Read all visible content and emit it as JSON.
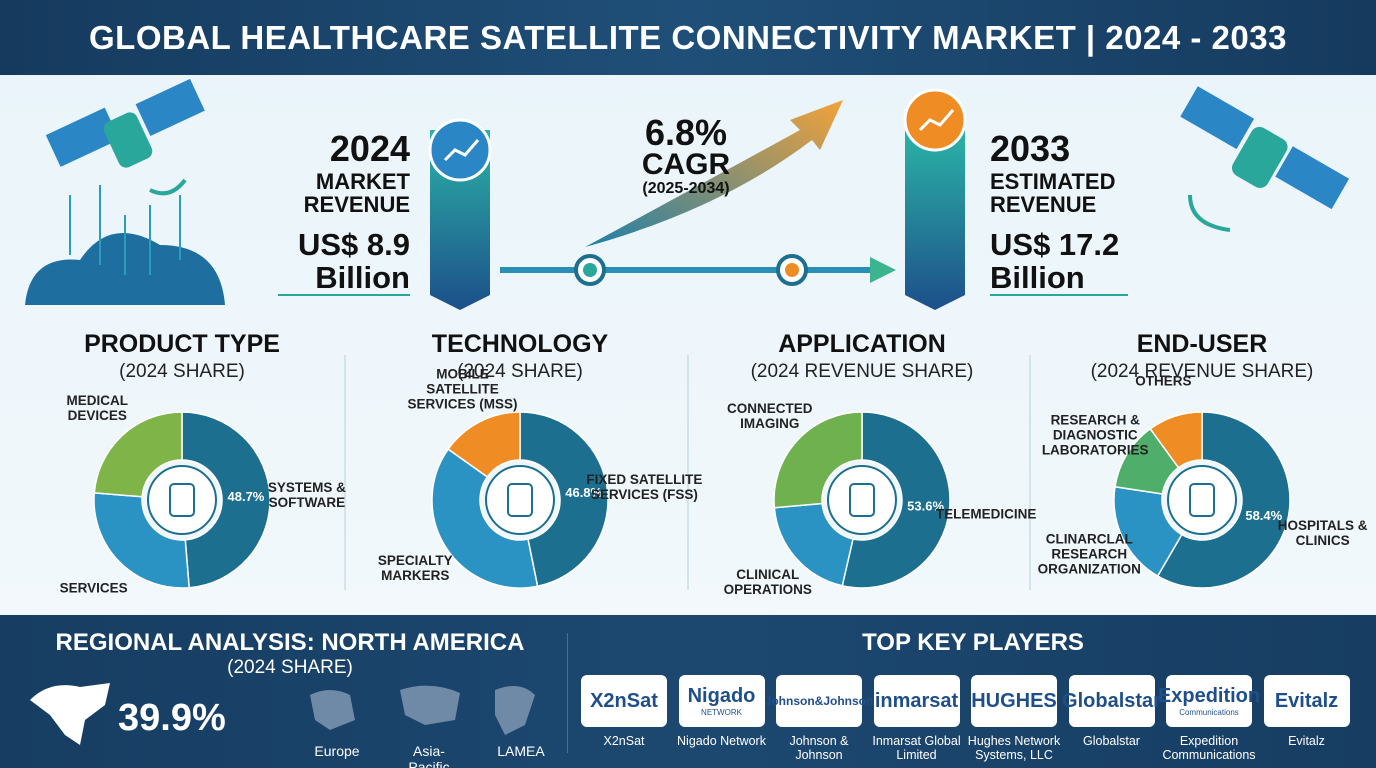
{
  "header": {
    "title": "GLOBAL HEALTHCARE SATELLITE CONNECTIVITY MARKET | 2024 - 2033"
  },
  "summary": {
    "start": {
      "year": "2024",
      "label": "MARKET REVENUE",
      "amount": "US$ 8.9",
      "unit": "Billion"
    },
    "growth": {
      "rate": "6.8%",
      "label": "CAGR",
      "period": "(2025-2034)"
    },
    "end": {
      "year": "2033",
      "label": "ESTIMATED REVENUE",
      "amount": "US$ 17.2",
      "unit": "Billion"
    }
  },
  "segments": [
    {
      "title": "PRODUCT TYPE",
      "subtitle": "(2024 SHARE)",
      "slices": [
        {
          "name": "SYSTEMS & SOFTWARE",
          "value": 48.7,
          "value_label": "48.7%",
          "color": "#1d6f8f"
        },
        {
          "name": "SERVICES",
          "value": 27.6,
          "color": "#2a93c4"
        },
        {
          "name": "MEDICAL DEVICES",
          "value": 23.7,
          "color": "#7fb548"
        }
      ]
    },
    {
      "title": "TECHNOLOGY",
      "subtitle": "(2024 SHARE)",
      "slices": [
        {
          "name": "FIXED SATELLITE SERVICES (FSS)",
          "value": 46.8,
          "value_label": "46.8%",
          "color": "#1d6f8f"
        },
        {
          "name": "SPECIALTY MARKERS",
          "value": 38.0,
          "color": "#2a93c4"
        },
        {
          "name": "MOBILE SATELLITE SERVICES (MSS)",
          "value": 15.2,
          "color": "#f08c24"
        }
      ]
    },
    {
      "title": "APPLICATION",
      "subtitle": "(2024 REVENUE SHARE)",
      "slices": [
        {
          "name": "TELEMEDICINE",
          "value": 53.6,
          "value_label": "53.6%",
          "color": "#1d6f8f"
        },
        {
          "name": "CLINICAL OPERATIONS",
          "value": 20.0,
          "color": "#2a93c4"
        },
        {
          "name": "CONNECTED IMAGING",
          "value": 26.4,
          "color": "#6fb04f"
        }
      ]
    },
    {
      "title": "END-USER",
      "subtitle": "(2024 REVENUE SHARE)",
      "slices": [
        {
          "name": "HOSPITALS & CLINICS",
          "value": 58.4,
          "value_label": "58.4%",
          "color": "#1d6f8f"
        },
        {
          "name": "CLINARCLAL RESEARCH ORGANIZATION",
          "value": 19.0,
          "color": "#2a93c4"
        },
        {
          "name": "RESEARCH & DIAGNOSTIC LABORATORIES",
          "value": 12.6,
          "color": "#4fae6a"
        },
        {
          "name": "OTHERS",
          "value": 10.0,
          "color": "#f08c24"
        }
      ]
    }
  ],
  "region": {
    "title": "REGIONAL ANALYSIS: NORTH AMERICA",
    "subtitle": "(2024 SHARE)",
    "share": "39.9%",
    "others": [
      "Europe",
      "Asia-Pacific",
      "LAMEA"
    ]
  },
  "players": {
    "title": "TOP KEY PLAYERS",
    "items": [
      {
        "logo": [
          "X2nSat"
        ],
        "name": "X2nSat"
      },
      {
        "logo": [
          "Nigado",
          "NETWORK"
        ],
        "name": "Nigado Network"
      },
      {
        "logo": [
          "Johnson&Johnson"
        ],
        "name": "Johnson & Johnson"
      },
      {
        "logo": [
          "inmarsat"
        ],
        "name": "Inmarsat Global Limited"
      },
      {
        "logo": [
          "HUGHES"
        ],
        "name": "Hughes Network Systems, LLC"
      },
      {
        "logo": [
          "Globalstar"
        ],
        "name": "Globalstar"
      },
      {
        "logo": [
          "Expedition",
          "Communications"
        ],
        "name": "Expedition Communications"
      },
      {
        "logo": [
          "Evitalz"
        ],
        "name": "Evitalz"
      }
    ]
  }
}
